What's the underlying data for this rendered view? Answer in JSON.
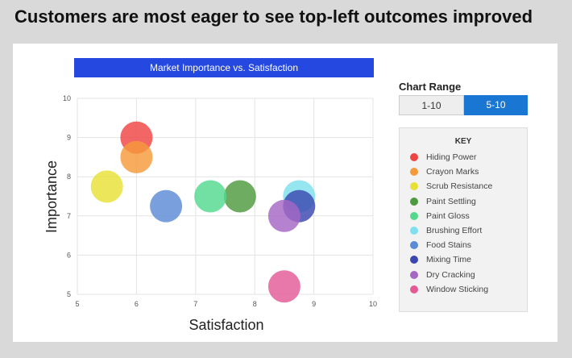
{
  "headline": "Customers are most eager to see top-left outcomes improved",
  "chart_range": {
    "title": "Chart Range",
    "options": [
      "1-10",
      "5-10"
    ],
    "selected": "5-10"
  },
  "key": {
    "title": "KEY"
  },
  "chart_data": {
    "type": "scatter",
    "title": "Market Importance vs. Satisfaction",
    "xlabel": "Satisfaction",
    "ylabel": "Importance",
    "xlim": [
      5,
      10
    ],
    "ylim": [
      5,
      10
    ],
    "xticks": [
      "5",
      "6",
      "7",
      "8",
      "9",
      "10"
    ],
    "yticks": [
      "5",
      "6",
      "7",
      "8",
      "9",
      "10"
    ],
    "grid": true,
    "legend_position": "right",
    "series": [
      {
        "name": "Hiding Power",
        "x": 6.0,
        "y": 9.0,
        "color": "#ef4444"
      },
      {
        "name": "Crayon Marks",
        "x": 6.0,
        "y": 8.5,
        "color": "#f59a3a"
      },
      {
        "name": "Scrub Resistance",
        "x": 5.5,
        "y": 7.75,
        "color": "#e8e036"
      },
      {
        "name": "Paint Settling",
        "x": 7.75,
        "y": 7.5,
        "color": "#4e9a3e"
      },
      {
        "name": "Paint Gloss",
        "x": 7.25,
        "y": 7.5,
        "color": "#52d98e"
      },
      {
        "name": "Brushing Effort",
        "x": 8.75,
        "y": 7.5,
        "color": "#7ee0ee"
      },
      {
        "name": "Food Stains",
        "x": 6.5,
        "y": 7.25,
        "color": "#5b8ad6"
      },
      {
        "name": "Mixing Time",
        "x": 8.75,
        "y": 7.25,
        "color": "#3b47b0"
      },
      {
        "name": "Dry Cracking",
        "x": 8.5,
        "y": 7.0,
        "color": "#a566c4"
      },
      {
        "name": "Window Sticking",
        "x": 8.5,
        "y": 5.2,
        "color": "#e35a97"
      }
    ]
  }
}
